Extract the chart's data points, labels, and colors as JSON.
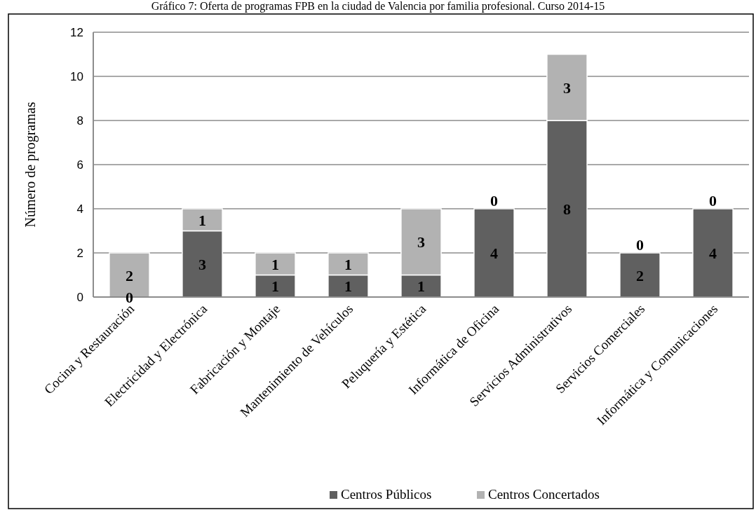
{
  "chart_data": {
    "type": "bar",
    "title": "Gráfico 7: Oferta de programas FPB en la ciudad de Valencia por familia profesional. Curso 2014-15",
    "ylabel": "Número de programas",
    "categories": [
      "Cocina y Restauración",
      "Electricidad y Electrónica",
      "Fabricación y Montaje",
      "Mantenimiento de Vehículos",
      "Peluquería y Estética",
      "Informática de Oficina",
      "Servicios Administrativos",
      "Servicios Comerciales",
      "Informática y Comunicaciones"
    ],
    "series": [
      {
        "name": "Centros Públicos",
        "color": "#606060",
        "values": [
          0,
          3,
          1,
          1,
          1,
          4,
          8,
          2,
          4
        ]
      },
      {
        "name": "Centros Concertados",
        "color": "#b2b2b2",
        "values": [
          2,
          1,
          1,
          1,
          3,
          0,
          3,
          0,
          0
        ]
      }
    ],
    "stacked": true,
    "ylim": [
      0,
      12
    ],
    "yticks": [
      0,
      2,
      4,
      6,
      8,
      10,
      12
    ],
    "grid": "y",
    "legend": "bottom",
    "data_labels": true
  }
}
